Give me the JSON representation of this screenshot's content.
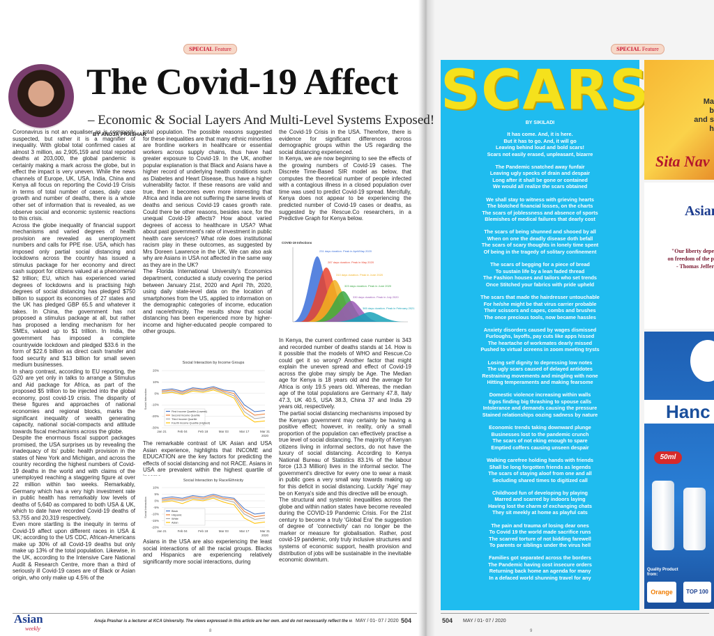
{
  "left_page": {
    "section_tag": {
      "bold": "SPECIAL",
      "rest": "Feature"
    },
    "title": "The Covid-19 Affect",
    "subtitle": "– Economic & Social Layers And Multi-Level Systems Exposed!",
    "byline": "BY ANUJA PRASHAR",
    "body": {
      "col1": [
        "Coronavirus is not an equaliser as is commonly suspected, but rather it is a magnifier of inequality. With global total confirmed cases at almost 3 million, as 2,905,159 and total reported deaths at 203,000, the global pandemic is certainly making a mark across the globe, but in effect the impact is very uneven. While the news channels of Europe, UK, USA, India, China and Kenya all focus on reporting the Covid-19 Crisis in terms of total number of cases, daily case growth and number of deaths, there is a whole other set of information that is revealed, as we observe social and economic systemic reactions to this crisis.",
        "Across the globe inequality of financial support mechanisms and varied degrees of health provision are revealed as unemployment numbers and calls for PPE rise. USA, which has imposed only partial social distancing and lockdowns across the country has issued a stimulus package for her economy and direct cash support for citizens valued at a phenomenal $2 trillion; EU, which has experienced varied degrees of lockdowns and is practising high degrees of social distancing has pledged $750 billion to support its economies of 27 states and the UK has pledged GBP 65.5 and whatever it takes. In China, the government has not proposed a stimulus package at all, but rather has proposed a lending mechanism for her SMEs, valued up to $1 trillion. In India, the government has imposed a complete countrywide lockdown and pledged $33.6 in the form of $22.6 billion as direct cash transfer and food security and $13 billion for small seven medium businesses.",
        "In sharp contrast, according to EU reporting, the G20 are yet only in talks to arrange a Stimulus and Aid package for Africa, as part of the proposed $5 trillion to be injected into the global economy, post covid-19 crisis. The disparity of these figures and approaches of national economies and regional blocks, marks the significant inequality of wealth generating capacity, national social-compacts and attitude towards fiscal mechanisms across the globe.",
        "Despite the enormous fiscal support packages promised, the USA surprises us by revealing the inadequacy of its' public health provision in the states of New York and Michigan, and across the country recording the highest numbers of Covid-19 deaths in the world and with claims of the unemployed reaching a staggering figure at over 22 million within two weeks. Remarkably, Germany which has a very high investment rate in public health has remarkably low levels of deaths of 5,640 as compared to both USA & UK, which to date have recorded Covid-19 deaths of 53,755 and 20,319 respectively.",
        "Even more startling is the inequity in terms of Covid-19 affect upon different races in USA & UK; according to the US CDC, African-Americans make up 30% of all Covid-19 deaths but only make up 13% of the total population. Likewise, in the UK, according to the Intensive Care National Audit & Research Centre, more than a third of seriously ill Covid-19 cases are of Black or Asian origin, who only make up 4.5% of the"
      ],
      "col2a": [
        "total population. The possible reasons suggested for these inequalities are that many ethnic minorities are frontline workers in healthcare or essential workers across supply chains, thus have had greater exposure to Covid-19. In the UK, another popular explanation is that Black and Asians have a higher record of underlying health conditions such as Diabetes and Heart Disease, thus have a higher vulnerability factor. If these reasons are valid and true, then it becomes even more interesting that Africa and India are not suffering the same levels of deaths and serious Covid-19 cases growth rate. Could there be other reasons, besides race, for the unequal Covid-19 affects? How about varied degrees of access to healthcare in USA? What about past government's rate of investment in public health care services? What role does institutional racism play in these outcomes, as suggested by Mrs Doreen Lawrence in the UK. We can also ask why are Asians in USA not affected in the same way as they are in the UK?",
        "The Florida International University's Economics department, conducted a study covering the period between January 21st, 2020 and April 7th, 2020, using daily state-level data on the location of smartphones from the US, applied to information on the demographic categories of income, education and race/ethnicity. The results show that social distancing has been experienced more by higher-income and higher-educated people compared to other groups."
      ],
      "col2b": [
        "The remarkable contrast of UK Asian and USA Asian experience, highlights that INCOME and EDUCATION are the key factors for predicting the effects of social distancing and not RACE. Asians in USA are prevalent within the highest quartile of income."
      ],
      "col2c": [
        "Asians in the USA are also experiencing the least social interactions of all the racial groups. Blacks and Hispanics are experiencing relatively significantly more social interactions, during"
      ],
      "col3a": [
        "the Covid-19 Crisis in the USA. Therefore, there is evidence for significant differences across demographic groups within the US regarding the social distancing experienced.",
        "In Kenya, we are now beginning to see the effects of the growing numbers of Covid-19 cases. The Discrete Time-Based SIR model as below, that computes the theoretical number of people infected with a contagious illness in a closed population over time was used to predict Covid-19 spread. Mercifully, Kenya does not appear to be experiencing the predicted number of Covid-19 cases or deaths, as suggested by the Rescue.Co researchers, in a Predictive Graph for Kenya below."
      ],
      "col3b": [
        "In Kenya, the current confirmed case number is 343 and recorded number of deaths stands at 14. How is it possible that the models of WHO and Rescue.Co could get it so wrong? Another factor that might explain the uneven spread and effect of Covid-19 across the globe may simply be Age. The Median age for Kenya is 18 years old and the average for Africa is only 19.5 years old. Whereas, the median age of the total populations are Germany 47.8, Italy 47.3, UK 40.5, USA 38.3, China 37 and India 29 years old, respectively.",
        "The partial social distancing mechanisms imposed by the Kenyan government may certainly be having a positive effect; however, in reality, only a small proportion of the population can effectively practise a true level of social distancing. The majority of Kenyan citizens living in informal sectors, do not have the luxury of social distancing. According to Kenya National Bureau of Statistics 83.1% of the labour force (13.3 Million) lives in the informal sector. The government's directive for every one to wear a mask in public goes a very small way towards making up for this deficit in social distancing. Luckily 'Age' may be on Kenya's side and this directive will be enough.",
        "The structural and systemic inequalities across the globe and within nation states have become revealed during the COVID-19 Pandemic Crisis. For the 21st century to become a truly 'Global Era' the suggestion of degree of 'connectivity' can no longer be the marker or measure for globalisation. Rather, post covid-19 pandemic, only truly inclusive structures and systems of economic support, health provision and distribution of jobs will be sustainable in the inevitable economic downturn."
      ]
    },
    "kenya_graph": {
      "title": "COVID-19 Infections",
      "annotations": [
        "231 days duration. Peak in April/May 2020",
        "287 days duration. Peak in May 2020",
        "310 days duration. Peak in June 2020",
        "323 days duration. Peak in June 2020",
        "330 days duration. Peak in July 2020",
        "365 days duration. Peak in February 2021"
      ]
    },
    "footer": {
      "logo": "Asian",
      "logo_sub": "weekly",
      "note": "Anuja Prashar is a lecturer at KCA University. The views expressed in this article are her own. and do not necessarily reflect the views of The Asian Weekly.",
      "date": "MAY / 01- 07 / 2020",
      "issue": "504",
      "page": "8"
    }
  },
  "chart_data": [
    {
      "type": "line",
      "title": "Social Interaction by Income Groups",
      "y_label": "Social Interaction",
      "x_note": "2020",
      "categories": [
        "Jan 21",
        null,
        "Feb 04",
        null,
        "Feb 18",
        null,
        "Mar 03",
        null,
        "Mar 17",
        null,
        "Mar 31"
      ],
      "series": [
        {
          "name": "First Income Quartile (Lowest)",
          "color": "#4472c4",
          "values": [
            3,
            4,
            2,
            5,
            4,
            6,
            3,
            2,
            -10,
            -16,
            -15
          ]
        },
        {
          "name": "Second Income Quartile",
          "color": "#ed7d31",
          "values": [
            2,
            3,
            1,
            4,
            3,
            5,
            2,
            0,
            -13,
            -19,
            -18
          ]
        },
        {
          "name": "Third Income Quartile",
          "color": "#a5a5a5",
          "values": [
            1,
            2,
            0,
            3,
            2,
            4,
            1,
            -2,
            -16,
            -22,
            -21
          ]
        },
        {
          "name": "Fourth Income Quartile (Highest)",
          "color": "#ffc000",
          "values": [
            0,
            1,
            -1,
            2,
            1,
            3,
            0,
            -4,
            -19,
            -25,
            -24
          ]
        }
      ],
      "ylim": [
        -30,
        20
      ],
      "yticks": [
        {
          "value": 20,
          "label": "20%"
        },
        {
          "value": 10,
          "label": "10%"
        },
        {
          "value": 0,
          "label": "0%"
        },
        {
          "value": -10,
          "label": "-10%"
        },
        {
          "value": -20,
          "label": "-20%"
        },
        {
          "value": -30,
          "label": "-30%"
        }
      ],
      "grid": true,
      "legend": "lower left"
    },
    {
      "type": "line",
      "title": "Social Interaction by Race/Ethnicity",
      "y_label": "Social Interaction",
      "x_note": "2020",
      "categories": [
        "Jan 21",
        null,
        "Feb 04",
        null,
        "Feb 18",
        null,
        "Mar 03",
        null,
        "Mar 17",
        null,
        "Mar 31"
      ],
      "series": [
        {
          "name": "Black",
          "color": "#4472c4",
          "values": [
            2,
            3,
            2,
            4,
            3,
            5,
            3,
            2,
            -6,
            -10,
            -9
          ]
        },
        {
          "name": "Hispanic",
          "color": "#ed7d31",
          "values": [
            1,
            2,
            1,
            3,
            2,
            4,
            2,
            1,
            -8,
            -12,
            -11
          ]
        },
        {
          "name": "White",
          "color": "#a5a5a5",
          "values": [
            0,
            1,
            0,
            2,
            1,
            3,
            1,
            -1,
            -10,
            -14,
            -13
          ]
        },
        {
          "name": "Asian",
          "color": "#ffc000",
          "values": [
            -1,
            0,
            -2,
            1,
            0,
            2,
            -1,
            -3,
            -13,
            -17,
            -16
          ]
        }
      ],
      "ylim": [
        -20,
        10
      ],
      "yticks": [
        {
          "value": 10,
          "label": "10%"
        },
        {
          "value": 5,
          "label": "5%"
        },
        {
          "value": 0,
          "label": "0%"
        },
        {
          "value": -5,
          "label": "-5%"
        },
        {
          "value": -10,
          "label": "-10%"
        },
        {
          "value": -15,
          "label": "-15%"
        },
        {
          "value": -20,
          "label": "-20%"
        }
      ],
      "grid": true,
      "legend": "lower left"
    }
  ],
  "right_page": {
    "section_tag": {
      "bold": "SPECIAL",
      "rest": "Feature"
    },
    "poem": {
      "title": "SCARS",
      "byline": "BY SIKILADI",
      "stanzas": [
        [
          "It has come. And, it is here.",
          "But it has to go. And, it will go",
          "Leaving behind loud and bold scars!",
          "Scars not easily erased, unpleasant, bizarre"
        ],
        [
          "The Pandemic snatched away funfair",
          "Leaving ugly specks of drain and despair",
          "Long after it shall be gone or contained",
          "We would all realize the scars obtained"
        ],
        [
          "We shall stay to witness with grieving hearts",
          "The blotched financial losses, on the charts",
          "The scars of joblessness and absence of sports",
          "Blemishes of medical failures that dearly cost"
        ],
        [
          "The scars of being shunned and shooed by all",
          "When on one the deadly disease doth befall",
          "The scars of scary thoughts in lonely time spent",
          "Of being in the tragedy of solitary confinement"
        ],
        [
          "The scars of begging for a piece of bread",
          "To sustain life by a lean faded thread",
          "The Fashion houses and tailors who set trends",
          "Once Stitched your fabrics with pride upheld"
        ],
        [
          "The scars that made the hairdresser untouchable",
          "For he/she might be that virus carrier probable",
          "Their scissors and capes, combs and brushes",
          "The once precious tools, now became hassles"
        ],
        [
          "Anxiety disorders caused by wages dismissed",
          "Furloughs, layoffs, pay cuts like apps hissed",
          "The heartache of workmates dearly missed",
          "Pushed to virtual screens in zoom meeting trysts"
        ],
        [
          "Losing self dignity to depressing low notes",
          "The ugly scars caused of delayed antidotes",
          "Restraining movements and mingling with none",
          "Hitting temperaments and making fearsome"
        ],
        [
          "Domestic violence increasing within walls",
          "Egos finding big thrashing to spouse calls",
          "Intolerance and demands causing the pressure",
          "Stained relationships oozing sadness by nature"
        ],
        [
          "Economic trends taking downward plunge",
          "Businesses lost to the pandemic crunch",
          "The scars of not eking enough to spare",
          "Emptied coffers causing unseen despair"
        ],
        [
          "Walking carefree holding hands with friends",
          "Shall be long forgotten friends as legends",
          "The scars of staying aloof from one and all",
          "Secluding shared times to digitized call"
        ],
        [
          "Childhood fun of developing by playing",
          "Marred and scarred by indoors laying",
          "Having lost the charm of exchanging chats",
          "They sit meekly at home as playful cats"
        ],
        [
          "The pain and trauma of losing dear ones",
          "To Covid 19 the world made sacrifice runs",
          "The scarred torture of not bidding farewell",
          "To parents or siblings under the virus hell"
        ],
        [
          "Families got separated across the borders",
          "The Pandemic having cost insecure orders",
          "Returning back home an agenda for many",
          "In a defaced world shunning travel for any"
        ]
      ]
    },
    "ads": {
      "top_lines": [
        "Ma",
        "b",
        "and s",
        "h"
      ],
      "script_name": "Sita Nav",
      "logo": "Asian",
      "quote": [
        "\"Our liberty depe",
        "on freedom of the p",
        "- Thomas Jeffer"
      ],
      "band": "Hanc",
      "bottle": "50ml",
      "quality": "Quality Product from:",
      "brand": "Orange",
      "badge": "TOP 100"
    },
    "footer": {
      "issue": "504",
      "date": "MAY / 01- 07 / 2020",
      "page": "9"
    }
  }
}
